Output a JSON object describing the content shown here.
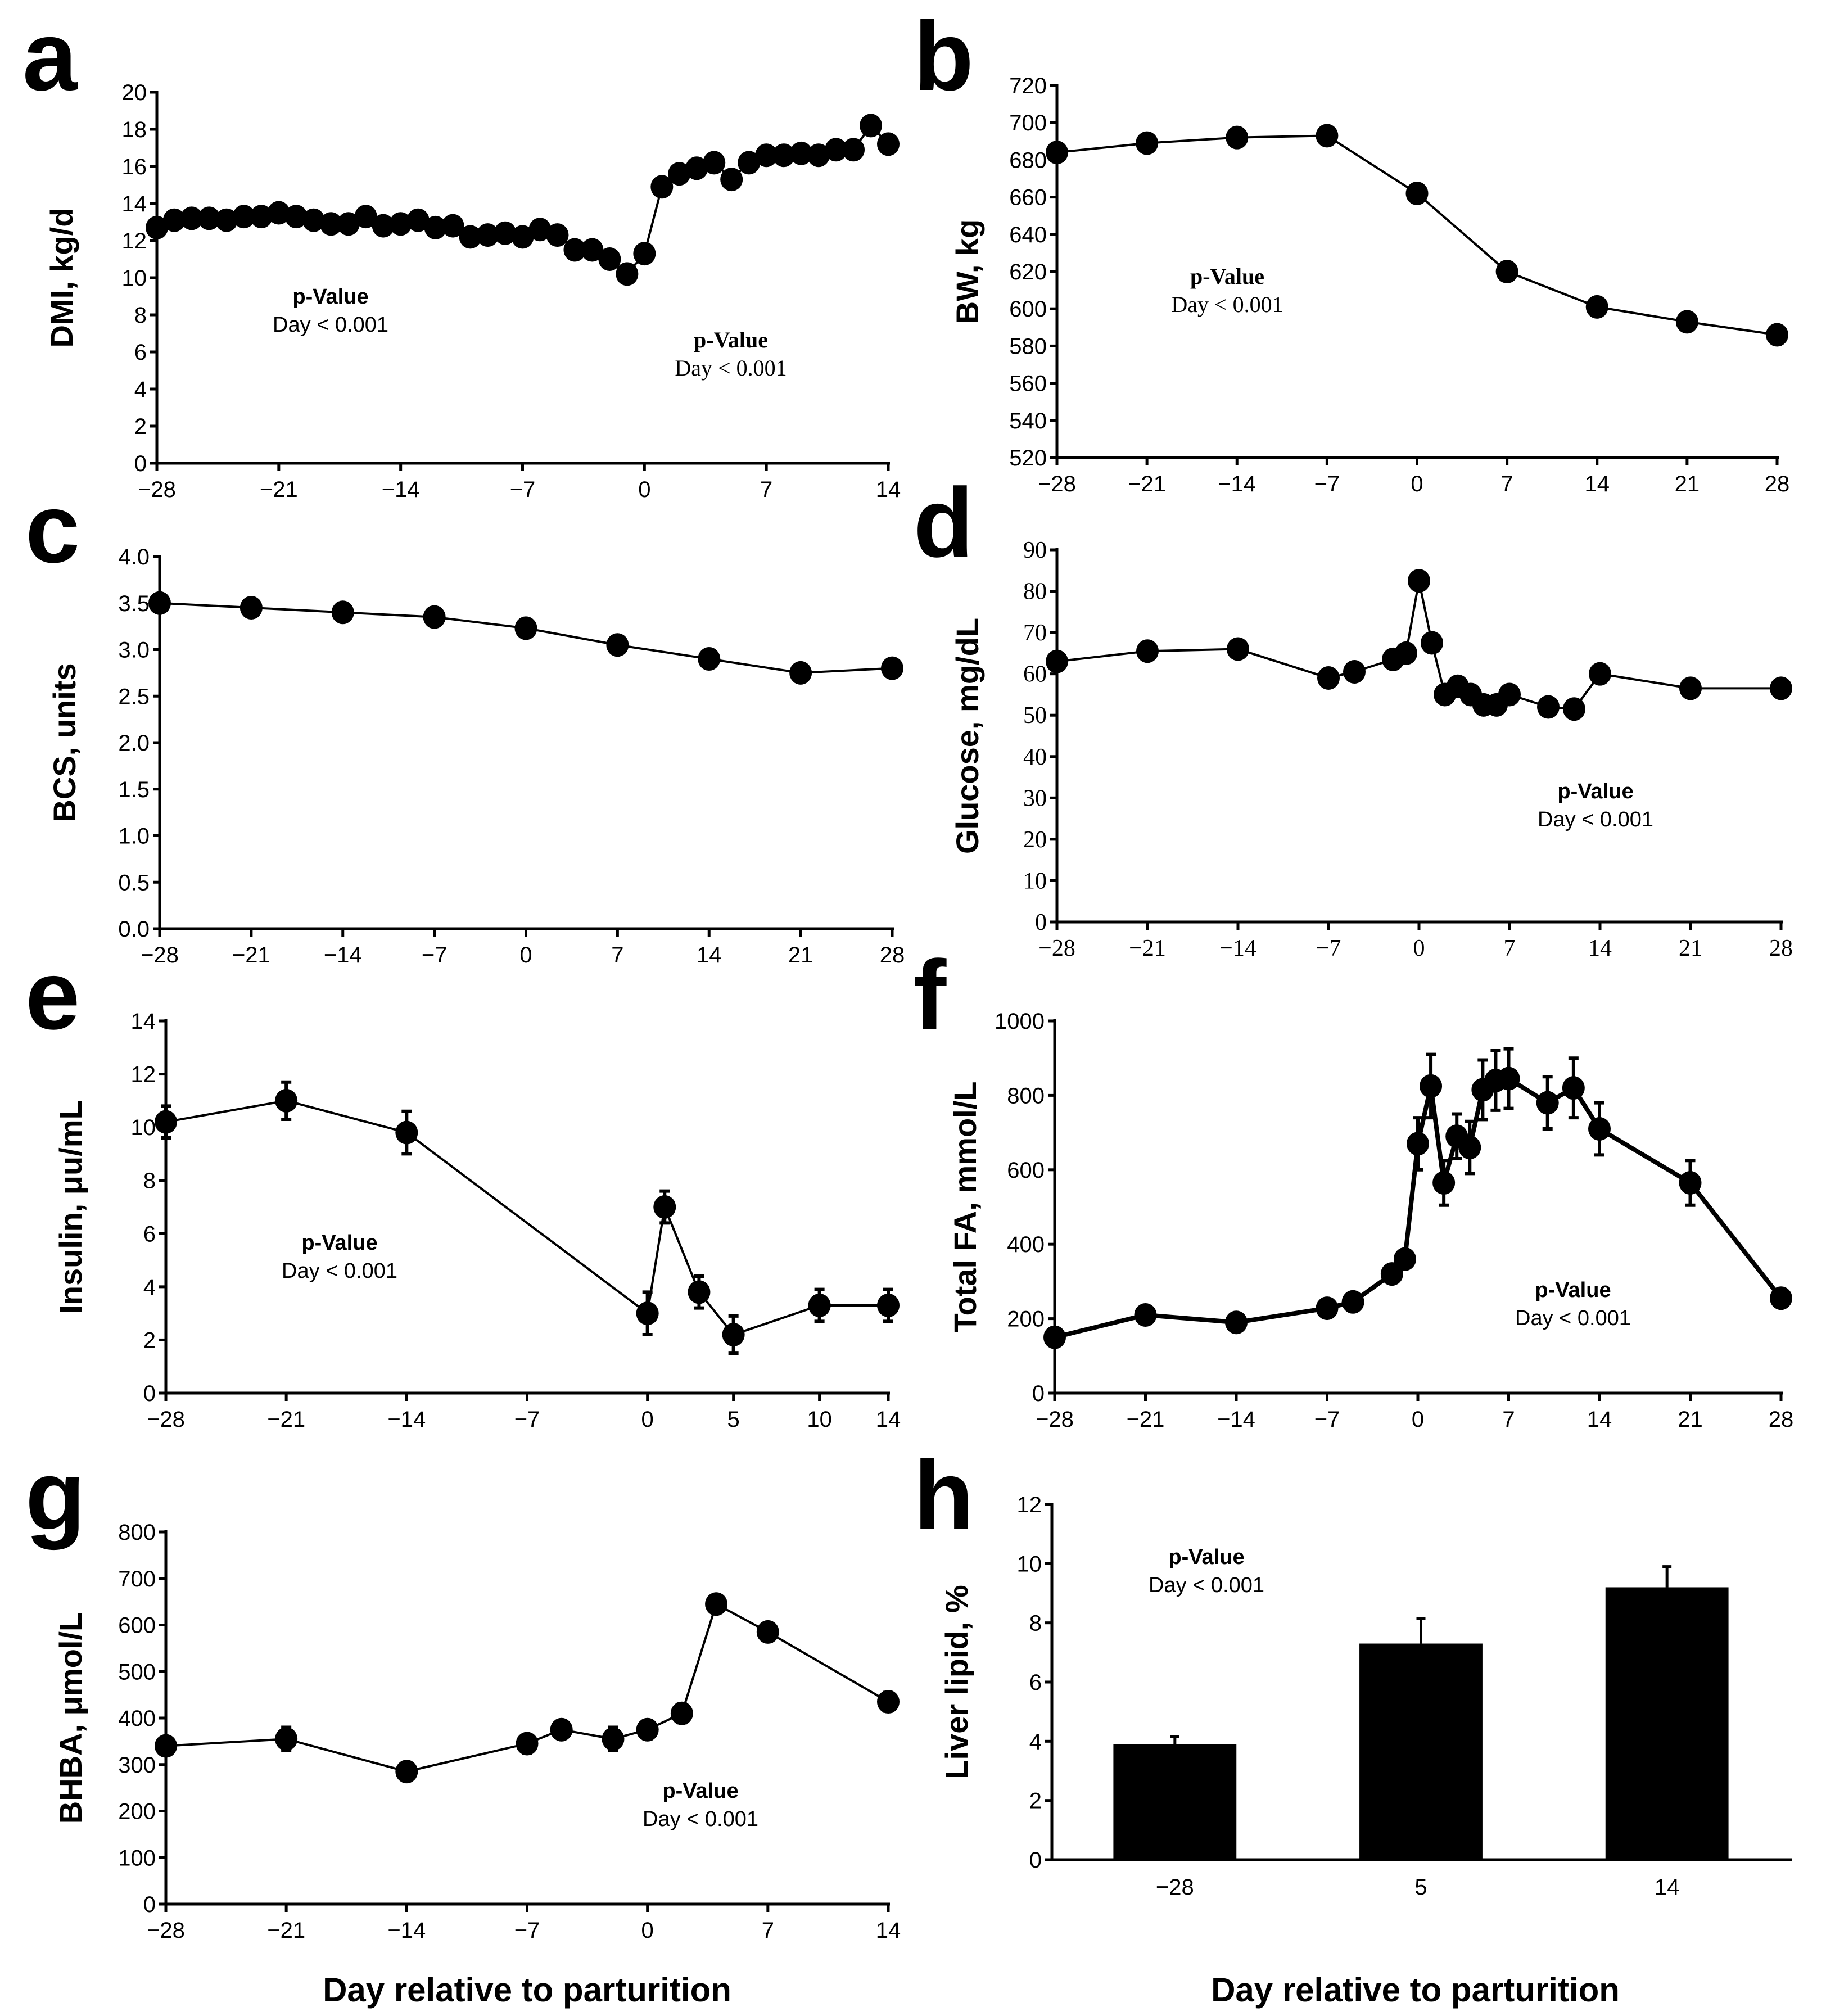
{
  "chart_data": [
    {
      "id": "a",
      "letter": "a",
      "type": "line",
      "ylabel": "DMI, kg/d",
      "xlabel": "",
      "ylim": [
        0,
        20
      ],
      "yticks": [
        0,
        2,
        4,
        6,
        8,
        10,
        12,
        14,
        16,
        18,
        20
      ],
      "xticks": [
        -28,
        -21,
        -14,
        -7,
        0,
        7,
        14
      ],
      "xtick_labels": [
        "−28",
        "−21",
        "−14",
        "−7",
        "0",
        "7",
        "14"
      ],
      "xlim": [
        -28,
        14
      ],
      "pvalue_title": "p-Value",
      "pvalue_text": "Day < 0.001",
      "x": [
        -28,
        -27,
        -26,
        -25,
        -24,
        -23,
        -22,
        -21,
        -20,
        -19,
        -18,
        -17,
        -16,
        -15,
        -14,
        -13,
        -12,
        -11,
        -10,
        -9,
        -8,
        -7,
        -6,
        -5,
        -4,
        -3,
        -2,
        -1,
        0,
        1,
        2,
        3,
        4,
        5,
        6,
        7,
        8,
        9,
        10,
        11,
        12,
        13,
        14
      ],
      "y": [
        12.7,
        13.1,
        13.2,
        13.2,
        13.1,
        13.3,
        13.3,
        13.5,
        13.3,
        13.1,
        12.9,
        12.9,
        13.3,
        12.8,
        12.9,
        13.1,
        12.7,
        12.8,
        12.2,
        12.3,
        12.4,
        12.2,
        12.6,
        12.3,
        11.5,
        11.5,
        11.0,
        10.2,
        11.3,
        14.9,
        15.6,
        15.9,
        16.2,
        15.3,
        16.2,
        16.6,
        16.6,
        16.7,
        16.6,
        16.9,
        16.9,
        18.2,
        17.2
      ]
    },
    {
      "id": "b",
      "letter": "b",
      "type": "line",
      "ylabel": "BW, kg",
      "xlabel": "",
      "ylim": [
        520,
        720
      ],
      "yticks": [
        520,
        540,
        560,
        580,
        600,
        620,
        640,
        660,
        680,
        700,
        720
      ],
      "xticks": [
        -28,
        -21,
        -14,
        -7,
        0,
        7,
        14,
        21,
        28
      ],
      "xtick_labels": [
        "−28",
        "−21",
        "−14",
        "−7",
        "0",
        "7",
        "14",
        "21",
        "28"
      ],
      "xlim": [
        -28,
        28
      ],
      "pvalue_title": "p-Value",
      "pvalue_text": "Day < 0.001",
      "x": [
        -28,
        -21,
        -14,
        -7,
        0,
        7,
        14,
        21,
        28
      ],
      "y": [
        684,
        689,
        692,
        693,
        662,
        620,
        601,
        593,
        586
      ]
    },
    {
      "id": "c",
      "letter": "c",
      "type": "line",
      "ylabel": "BCS, units",
      "xlabel": "",
      "ylim": [
        0,
        4
      ],
      "yticks": [
        "0.0",
        "0.5",
        "1.0",
        "1.5",
        "2.0",
        "2.5",
        "3.0",
        "3.5",
        "4.0"
      ],
      "xticks": [
        -28,
        -21,
        -14,
        -7,
        0,
        7,
        14,
        21,
        28
      ],
      "xtick_labels": [
        "−28",
        "−21",
        "−14",
        "−7",
        "0",
        "7",
        "14",
        "21",
        "28"
      ],
      "xlim": [
        -28,
        28
      ],
      "pvalue_title": "p-Value",
      "pvalue_text": "Day < 0.001",
      "x": [
        -28,
        -21,
        -14,
        -7,
        0,
        7,
        14,
        21,
        28
      ],
      "y": [
        3.5,
        3.45,
        3.4,
        3.35,
        3.23,
        3.05,
        2.9,
        2.75,
        2.8
      ]
    },
    {
      "id": "d",
      "letter": "d",
      "type": "line",
      "ylabel": "Glucose, mg/dL",
      "xlabel": "",
      "ylim": [
        0,
        90
      ],
      "yticks": [
        0,
        10,
        20,
        30,
        40,
        50,
        60,
        70,
        80,
        90
      ],
      "xticks": [
        -28,
        -21,
        -14,
        -7,
        0,
        7,
        14,
        21,
        28
      ],
      "xtick_labels": [
        "−28",
        "−21",
        "−14",
        "−7",
        "0",
        "7",
        "14",
        "21",
        "28"
      ],
      "xlim": [
        -28,
        28
      ],
      "pvalue_title": "p-Value",
      "pvalue_text": "Day < 0.001",
      "x": [
        -28,
        -21,
        -14,
        -7,
        -5,
        -2,
        -1,
        0,
        1,
        2,
        3,
        4,
        5,
        6,
        7,
        10,
        12,
        14,
        21,
        28
      ],
      "y": [
        63,
        65.5,
        66,
        59,
        60.5,
        63.5,
        65,
        82.5,
        67.5,
        55,
        57,
        55,
        52.5,
        52.5,
        55,
        52,
        51.5,
        60,
        56.5,
        56.5
      ]
    },
    {
      "id": "e",
      "letter": "e",
      "type": "line",
      "ylabel": "Insulin, μu/mL",
      "xlabel": "",
      "ylim": [
        0,
        14
      ],
      "yticks": [
        0,
        2,
        4,
        6,
        8,
        10,
        12,
        14
      ],
      "xticks": [
        -28,
        -21,
        -14,
        -7,
        0,
        5,
        10,
        14
      ],
      "xtick_labels": [
        "−28",
        "−21",
        "−14",
        "−7",
        "0",
        "5",
        "10",
        "14"
      ],
      "xlim": [
        -28,
        14
      ],
      "pvalue_title": "p-Value",
      "pvalue_text": "Day < 0.001",
      "x": [
        -28,
        -21,
        -14,
        0,
        1,
        3,
        5,
        10,
        14
      ],
      "y": [
        10.2,
        11.0,
        9.8,
        3.0,
        7.0,
        3.8,
        2.2,
        3.3,
        3.3
      ],
      "err": [
        0.6,
        0.7,
        0.8,
        0.8,
        0.6,
        0.6,
        0.7,
        0.6,
        0.6
      ]
    },
    {
      "id": "f",
      "letter": "f",
      "type": "line",
      "ylabel": "Total FA, mmol/L",
      "xlabel": "",
      "ylim": [
        0,
        1000
      ],
      "yticks": [
        0,
        200,
        400,
        600,
        800,
        1000
      ],
      "xticks": [
        -28,
        -21,
        -14,
        -7,
        0,
        7,
        14,
        21,
        28
      ],
      "xtick_labels": [
        "−28",
        "−21",
        "−14",
        "−7",
        "0",
        "7",
        "14",
        "21",
        "28"
      ],
      "xlim": [
        -28,
        28
      ],
      "pvalue_title": "p-Value",
      "pvalue_text": "Day < 0.001",
      "x": [
        -28,
        -21,
        -14,
        -7,
        -5,
        -2,
        -1,
        0,
        1,
        2,
        3,
        4,
        5,
        6,
        7,
        10,
        12,
        14,
        21,
        28
      ],
      "y": [
        150,
        210,
        190,
        228,
        245,
        320,
        360,
        670,
        825,
        565,
        690,
        660,
        815,
        840,
        845,
        780,
        820,
        710,
        565,
        255
      ],
      "err": [
        0,
        0,
        0,
        0,
        0,
        20,
        20,
        70,
        85,
        60,
        60,
        70,
        80,
        80,
        80,
        70,
        80,
        70,
        60,
        0
      ]
    },
    {
      "id": "g",
      "letter": "g",
      "type": "line",
      "ylabel": "BHBA, μmol/L",
      "xlabel": "Day relative to parturition",
      "ylim": [
        0,
        800
      ],
      "yticks": [
        0,
        100,
        200,
        300,
        400,
        500,
        600,
        700,
        800
      ],
      "xticks": [
        -28,
        -21,
        -14,
        -7,
        0,
        7,
        14
      ],
      "xtick_labels": [
        "−28",
        "−21",
        "−14",
        "−7",
        "0",
        "7",
        "14"
      ],
      "xlim": [
        -28,
        14
      ],
      "pvalue_title": "p-Value",
      "pvalue_text": "Day < 0.001",
      "x": [
        -28,
        -21,
        -14,
        -7,
        -5,
        -2,
        0,
        2,
        4,
        7,
        14
      ],
      "y": [
        340,
        355,
        285,
        345,
        375,
        355,
        375,
        410,
        645,
        585,
        435
      ],
      "err": [
        0,
        25,
        0,
        20,
        0,
        25,
        20,
        20,
        0,
        20,
        20
      ]
    },
    {
      "id": "h",
      "letter": "h",
      "type": "bar",
      "ylabel": "Liver lipid, %",
      "xlabel": "Day relative to parturition",
      "ylim": [
        0,
        12
      ],
      "yticks": [
        0,
        2,
        4,
        6,
        8,
        10,
        12
      ],
      "categories": [
        "−28",
        "5",
        "14"
      ],
      "values": [
        3.9,
        7.3,
        9.2
      ],
      "err": [
        0.25,
        0.85,
        0.7
      ],
      "pvalue_title": "p-Value",
      "pvalue_text": "Day < 0.001"
    }
  ]
}
